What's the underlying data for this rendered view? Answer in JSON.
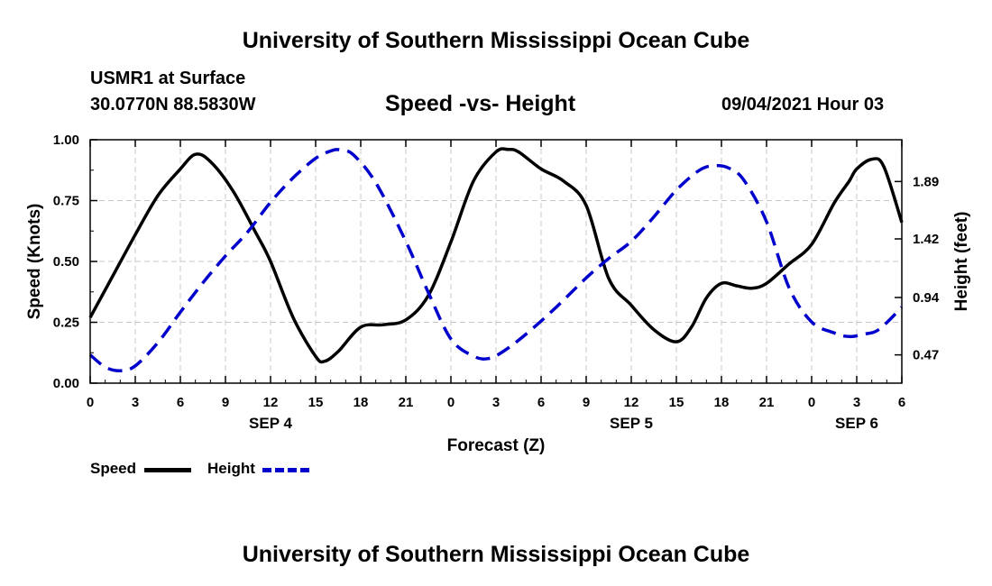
{
  "header": {
    "top_title": "University of Southern Mississippi Ocean Cube",
    "bottom_title": "University of Southern Mississippi Ocean Cube",
    "station": "USMR1 at Surface",
    "location": "30.0770N  88.5830W",
    "date": "09/04/2021 Hour 03"
  },
  "legend": {
    "speed_label": "Speed",
    "height_label": "Height"
  },
  "colors": {
    "speed": "#000000",
    "height": "#0000cc",
    "grid": "#c8c8c8"
  },
  "chart_data": {
    "type": "line",
    "title": "Speed -vs- Height",
    "xlabel": "Forecast (Z)",
    "ylabel": "Speed (Knots)",
    "y2label": "Height (feet)",
    "x_unit": "hours since 2021-09-04 00Z",
    "xlim": [
      0,
      54
    ],
    "ylim": [
      0,
      1
    ],
    "y2lim": [
      0.2383,
      2.2323
    ],
    "x_ticks": [
      0,
      3,
      6,
      9,
      12,
      15,
      18,
      21,
      24,
      27,
      30,
      33,
      36,
      39,
      42,
      45,
      48,
      51,
      54
    ],
    "x_tick_labels": [
      "0",
      "3",
      "6",
      "9",
      "12",
      "15",
      "18",
      "21",
      "0",
      "3",
      "6",
      "9",
      "12",
      "15",
      "18",
      "21",
      "0",
      "3",
      "6"
    ],
    "date_labels": [
      {
        "x": 12,
        "label": "SEP 4"
      },
      {
        "x": 36,
        "label": "SEP 5"
      },
      {
        "x": 51,
        "label": "SEP 6"
      }
    ],
    "y_ticks": [
      0,
      0.25,
      0.5,
      0.75,
      1.0
    ],
    "y_tick_labels": [
      "0.00",
      "0.25",
      "0.50",
      "0.75",
      "1.00"
    ],
    "y2_ticks": [
      0.47,
      0.94,
      1.42,
      1.89
    ],
    "y2_tick_labels": [
      "0.47",
      "0.94",
      "1.42",
      "1.89"
    ],
    "grid": true,
    "series": [
      {
        "name": "Speed",
        "axis": "left",
        "style": "solid",
        "x": [
          0,
          1.5,
          3,
          4.5,
          6,
          7,
          8,
          9.5,
          11,
          12,
          13.5,
          15,
          15.6,
          16.5,
          18,
          19.5,
          21,
          22.5,
          24,
          25.5,
          27,
          27.8,
          28.5,
          30,
          31.5,
          33,
          34.5,
          36,
          37.5,
          39,
          40,
          41,
          42,
          43,
          44,
          45,
          46.5,
          48,
          49.5,
          50.5,
          51,
          52,
          52.8,
          54
        ],
        "values": [
          0.27,
          0.44,
          0.61,
          0.77,
          0.88,
          0.94,
          0.91,
          0.79,
          0.62,
          0.5,
          0.27,
          0.11,
          0.09,
          0.13,
          0.23,
          0.24,
          0.26,
          0.36,
          0.58,
          0.83,
          0.95,
          0.96,
          0.95,
          0.88,
          0.83,
          0.73,
          0.43,
          0.32,
          0.22,
          0.17,
          0.23,
          0.35,
          0.41,
          0.4,
          0.39,
          0.41,
          0.49,
          0.57,
          0.74,
          0.83,
          0.88,
          0.92,
          0.89,
          0.66
        ]
      },
      {
        "name": "Height",
        "axis": "right",
        "style": "dashed",
        "x": [
          0,
          1,
          2,
          3,
          4.5,
          6,
          7.5,
          9,
          10.5,
          12,
          13.5,
          15,
          16,
          16.6,
          17.5,
          19,
          21,
          22.5,
          24,
          25.5,
          26.5,
          27.5,
          29,
          31,
          33,
          34.5,
          36,
          37.5,
          39,
          40.5,
          41.5,
          42.5,
          43.5,
          45,
          46.5,
          48,
          49.5,
          50.5,
          51.5,
          52.5,
          54
        ],
        "values": [
          0.47,
          0.37,
          0.34,
          0.38,
          0.57,
          0.82,
          1.06,
          1.28,
          1.48,
          1.72,
          1.92,
          2.08,
          2.14,
          2.15,
          2.11,
          1.88,
          1.4,
          0.98,
          0.6,
          0.46,
          0.44,
          0.5,
          0.64,
          0.86,
          1.1,
          1.26,
          1.4,
          1.6,
          1.82,
          1.98,
          2.02,
          2.0,
          1.9,
          1.56,
          1.02,
          0.74,
          0.65,
          0.62,
          0.64,
          0.68,
          0.86
        ]
      }
    ]
  }
}
